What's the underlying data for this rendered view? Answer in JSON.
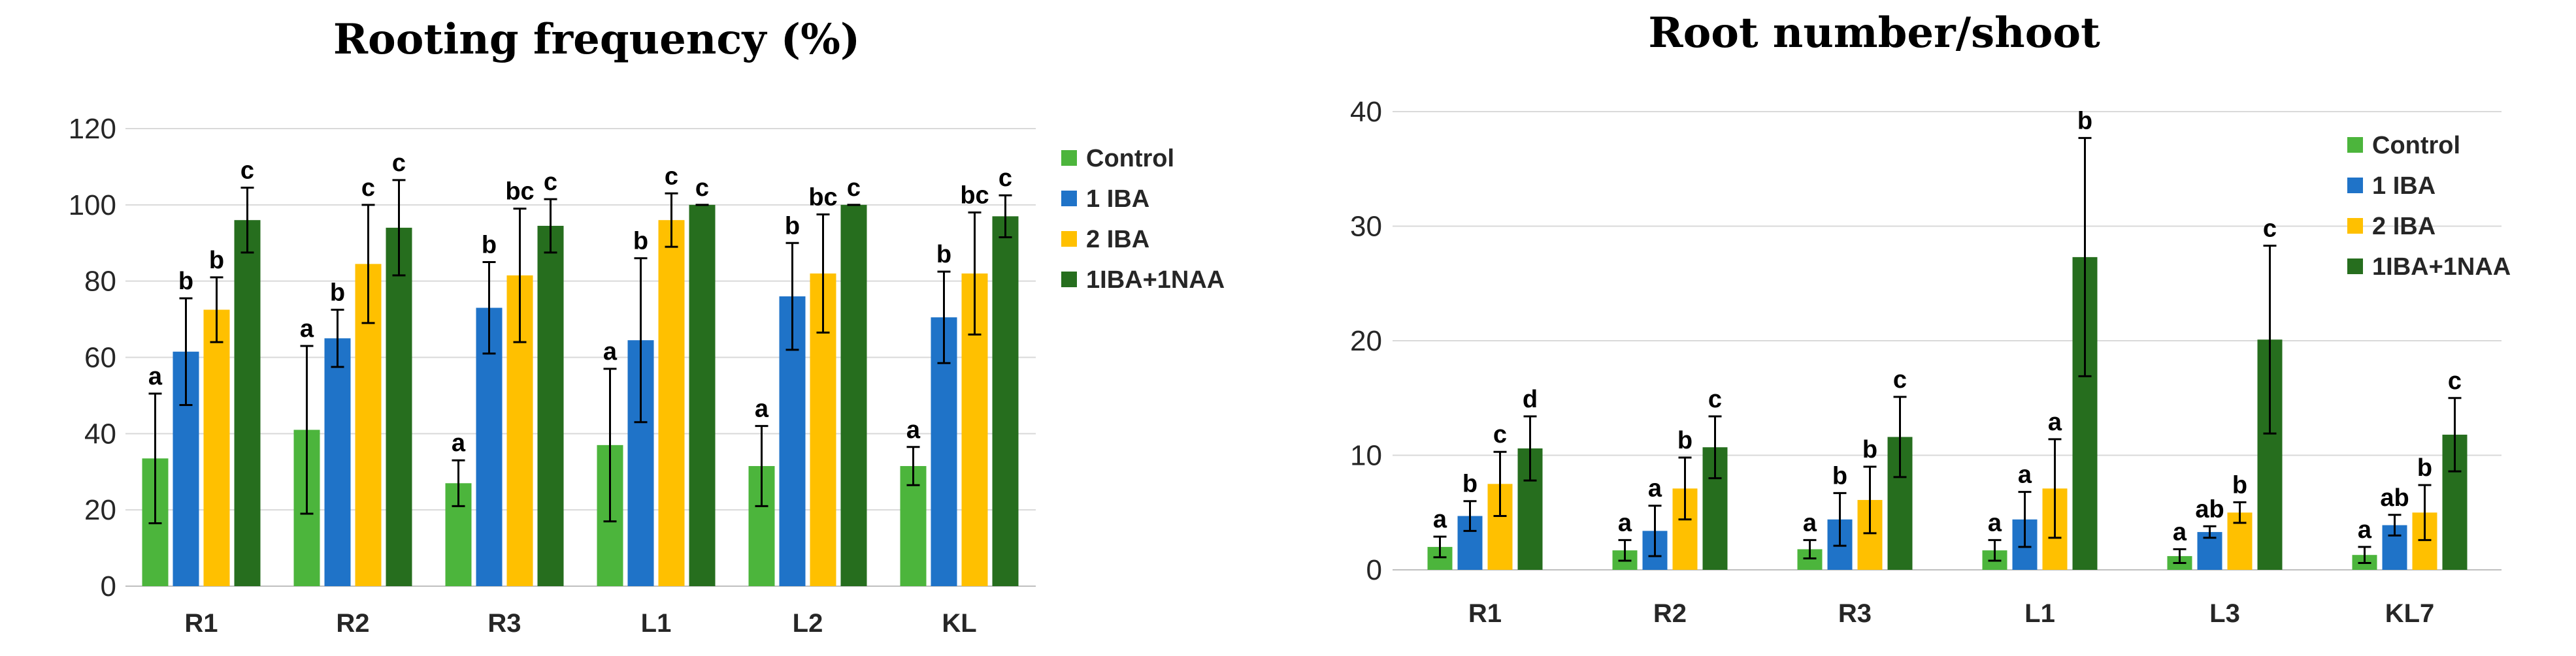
{
  "chart_data": [
    {
      "type": "bar",
      "title": "Rooting frequency (%)",
      "xlabel": "",
      "ylabel": "",
      "ylim": [
        0,
        120
      ],
      "yticks": [
        0,
        20,
        40,
        60,
        80,
        100,
        120
      ],
      "categories": [
        "R1",
        "R2",
        "R3",
        "L1",
        "L2",
        "KL"
      ],
      "legend_position": "right",
      "series": [
        {
          "name": "Control",
          "color": "#4cb53c",
          "values": [
            33.5,
            41,
            27,
            37,
            31.5,
            31.5
          ],
          "errors": [
            17,
            22,
            6,
            20,
            10.5,
            5
          ],
          "labels": [
            "a",
            "a",
            "a",
            "a",
            "a",
            "a"
          ]
        },
        {
          "name": "1 IBA",
          "color": "#1f73c8",
          "values": [
            61.5,
            65,
            73,
            64.5,
            76,
            70.5
          ],
          "errors": [
            14,
            7.5,
            12,
            21.5,
            14,
            12
          ],
          "labels": [
            "b",
            "b",
            "b",
            "b",
            "b",
            "b"
          ]
        },
        {
          "name": "2 IBA",
          "color": "#ffc000",
          "values": [
            72.5,
            84.5,
            81.5,
            96,
            82,
            82
          ],
          "errors": [
            8.5,
            15.5,
            17.5,
            7,
            15.5,
            16
          ],
          "labels": [
            "b",
            "c",
            "bc",
            "c",
            "bc",
            "bc"
          ]
        },
        {
          "name": "1IBA+1NAA",
          "color": "#266e1e",
          "values": [
            96,
            94,
            94.5,
            100,
            100,
            97
          ],
          "errors": [
            8.5,
            12.5,
            7,
            0,
            0,
            5.5
          ],
          "labels": [
            "c",
            "c",
            "c",
            "c",
            "c",
            "c"
          ]
        }
      ]
    },
    {
      "type": "bar",
      "title": "Root number/shoot",
      "xlabel": "",
      "ylabel": "",
      "ylim": [
        0,
        40
      ],
      "yticks": [
        0,
        10,
        20,
        30,
        40
      ],
      "categories": [
        "R1",
        "R2",
        "R3",
        "L1",
        "L3",
        "KL7"
      ],
      "legend_position": "right",
      "series": [
        {
          "name": "Control",
          "color": "#4cb53c",
          "values": [
            2,
            1.7,
            1.8,
            1.7,
            1.2,
            1.3
          ],
          "errors": [
            0.9,
            0.9,
            0.8,
            0.9,
            0.6,
            0.7
          ],
          "labels": [
            "a",
            "a",
            "a",
            "a",
            "a",
            "a"
          ]
        },
        {
          "name": "1 IBA",
          "color": "#1f73c8",
          "values": [
            4.7,
            3.4,
            4.4,
            4.4,
            3.3,
            3.9
          ],
          "errors": [
            1.3,
            2.2,
            2.3,
            2.4,
            0.5,
            0.9
          ],
          "labels": [
            "b",
            "a",
            "b",
            "a",
            "ab",
            "ab"
          ]
        },
        {
          "name": "2 IBA",
          "color": "#ffc000",
          "values": [
            7.5,
            7.1,
            6.1,
            7.1,
            5,
            5
          ],
          "errors": [
            2.8,
            2.7,
            2.9,
            4.3,
            0.9,
            2.4
          ],
          "labels": [
            "c",
            "b",
            "b",
            "a",
            "b",
            "b"
          ]
        },
        {
          "name": "1IBA+1NAA",
          "color": "#266e1e",
          "values": [
            10.6,
            10.7,
            11.6,
            27.3,
            20.1,
            11.8
          ],
          "errors": [
            2.8,
            2.7,
            3.5,
            10.4,
            8.2,
            3.2
          ],
          "labels": [
            "d",
            "c",
            "c",
            "b",
            "c",
            "c"
          ]
        }
      ]
    }
  ]
}
